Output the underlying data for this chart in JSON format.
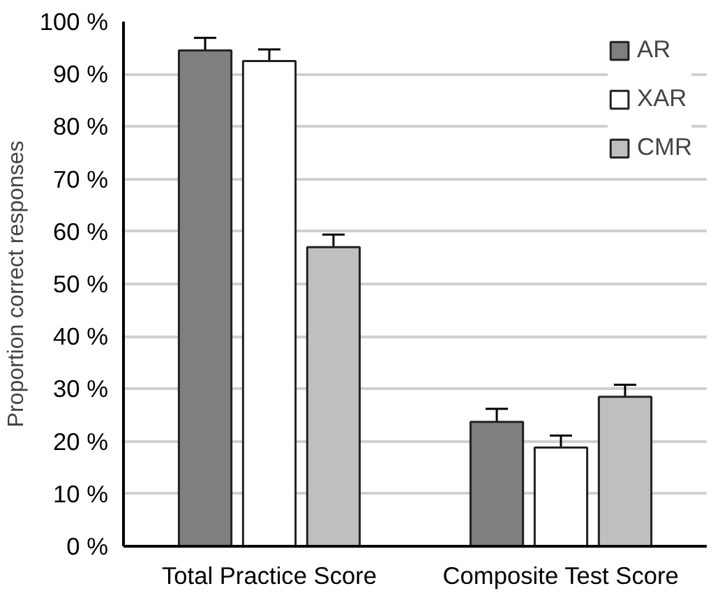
{
  "chart_data": {
    "type": "bar",
    "ylabel": "Proportion correct responses",
    "categories": [
      "Total Practice Score",
      "Composite Test Score"
    ],
    "series": [
      {
        "name": "AR",
        "color": "#7f7f7f",
        "values": [
          94.5,
          23.7
        ],
        "errors": [
          2.4,
          2.5
        ]
      },
      {
        "name": "XAR",
        "color": "#ffffff",
        "values": [
          92.5,
          18.8
        ],
        "errors": [
          2.2,
          2.3
        ]
      },
      {
        "name": "CMR",
        "color": "#bfbfbf",
        "values": [
          57,
          28.5
        ],
        "errors": [
          2.4,
          2.3
        ]
      }
    ],
    "ylim": [
      0,
      100
    ],
    "yticks": [
      {
        "value": 0,
        "label": "0 %"
      },
      {
        "value": 10,
        "label": "10 %"
      },
      {
        "value": 20,
        "label": "20 %"
      },
      {
        "value": 30,
        "label": "30 %"
      },
      {
        "value": 40,
        "label": "40 %"
      },
      {
        "value": 50,
        "label": "50 %"
      },
      {
        "value": 60,
        "label": "60 %"
      },
      {
        "value": 70,
        "label": "70 %"
      },
      {
        "value": 80,
        "label": "80 %"
      },
      {
        "value": 90,
        "label": "90 %"
      },
      {
        "value": 100,
        "label": "100 %"
      }
    ],
    "grid": "y",
    "legend": "top right"
  }
}
